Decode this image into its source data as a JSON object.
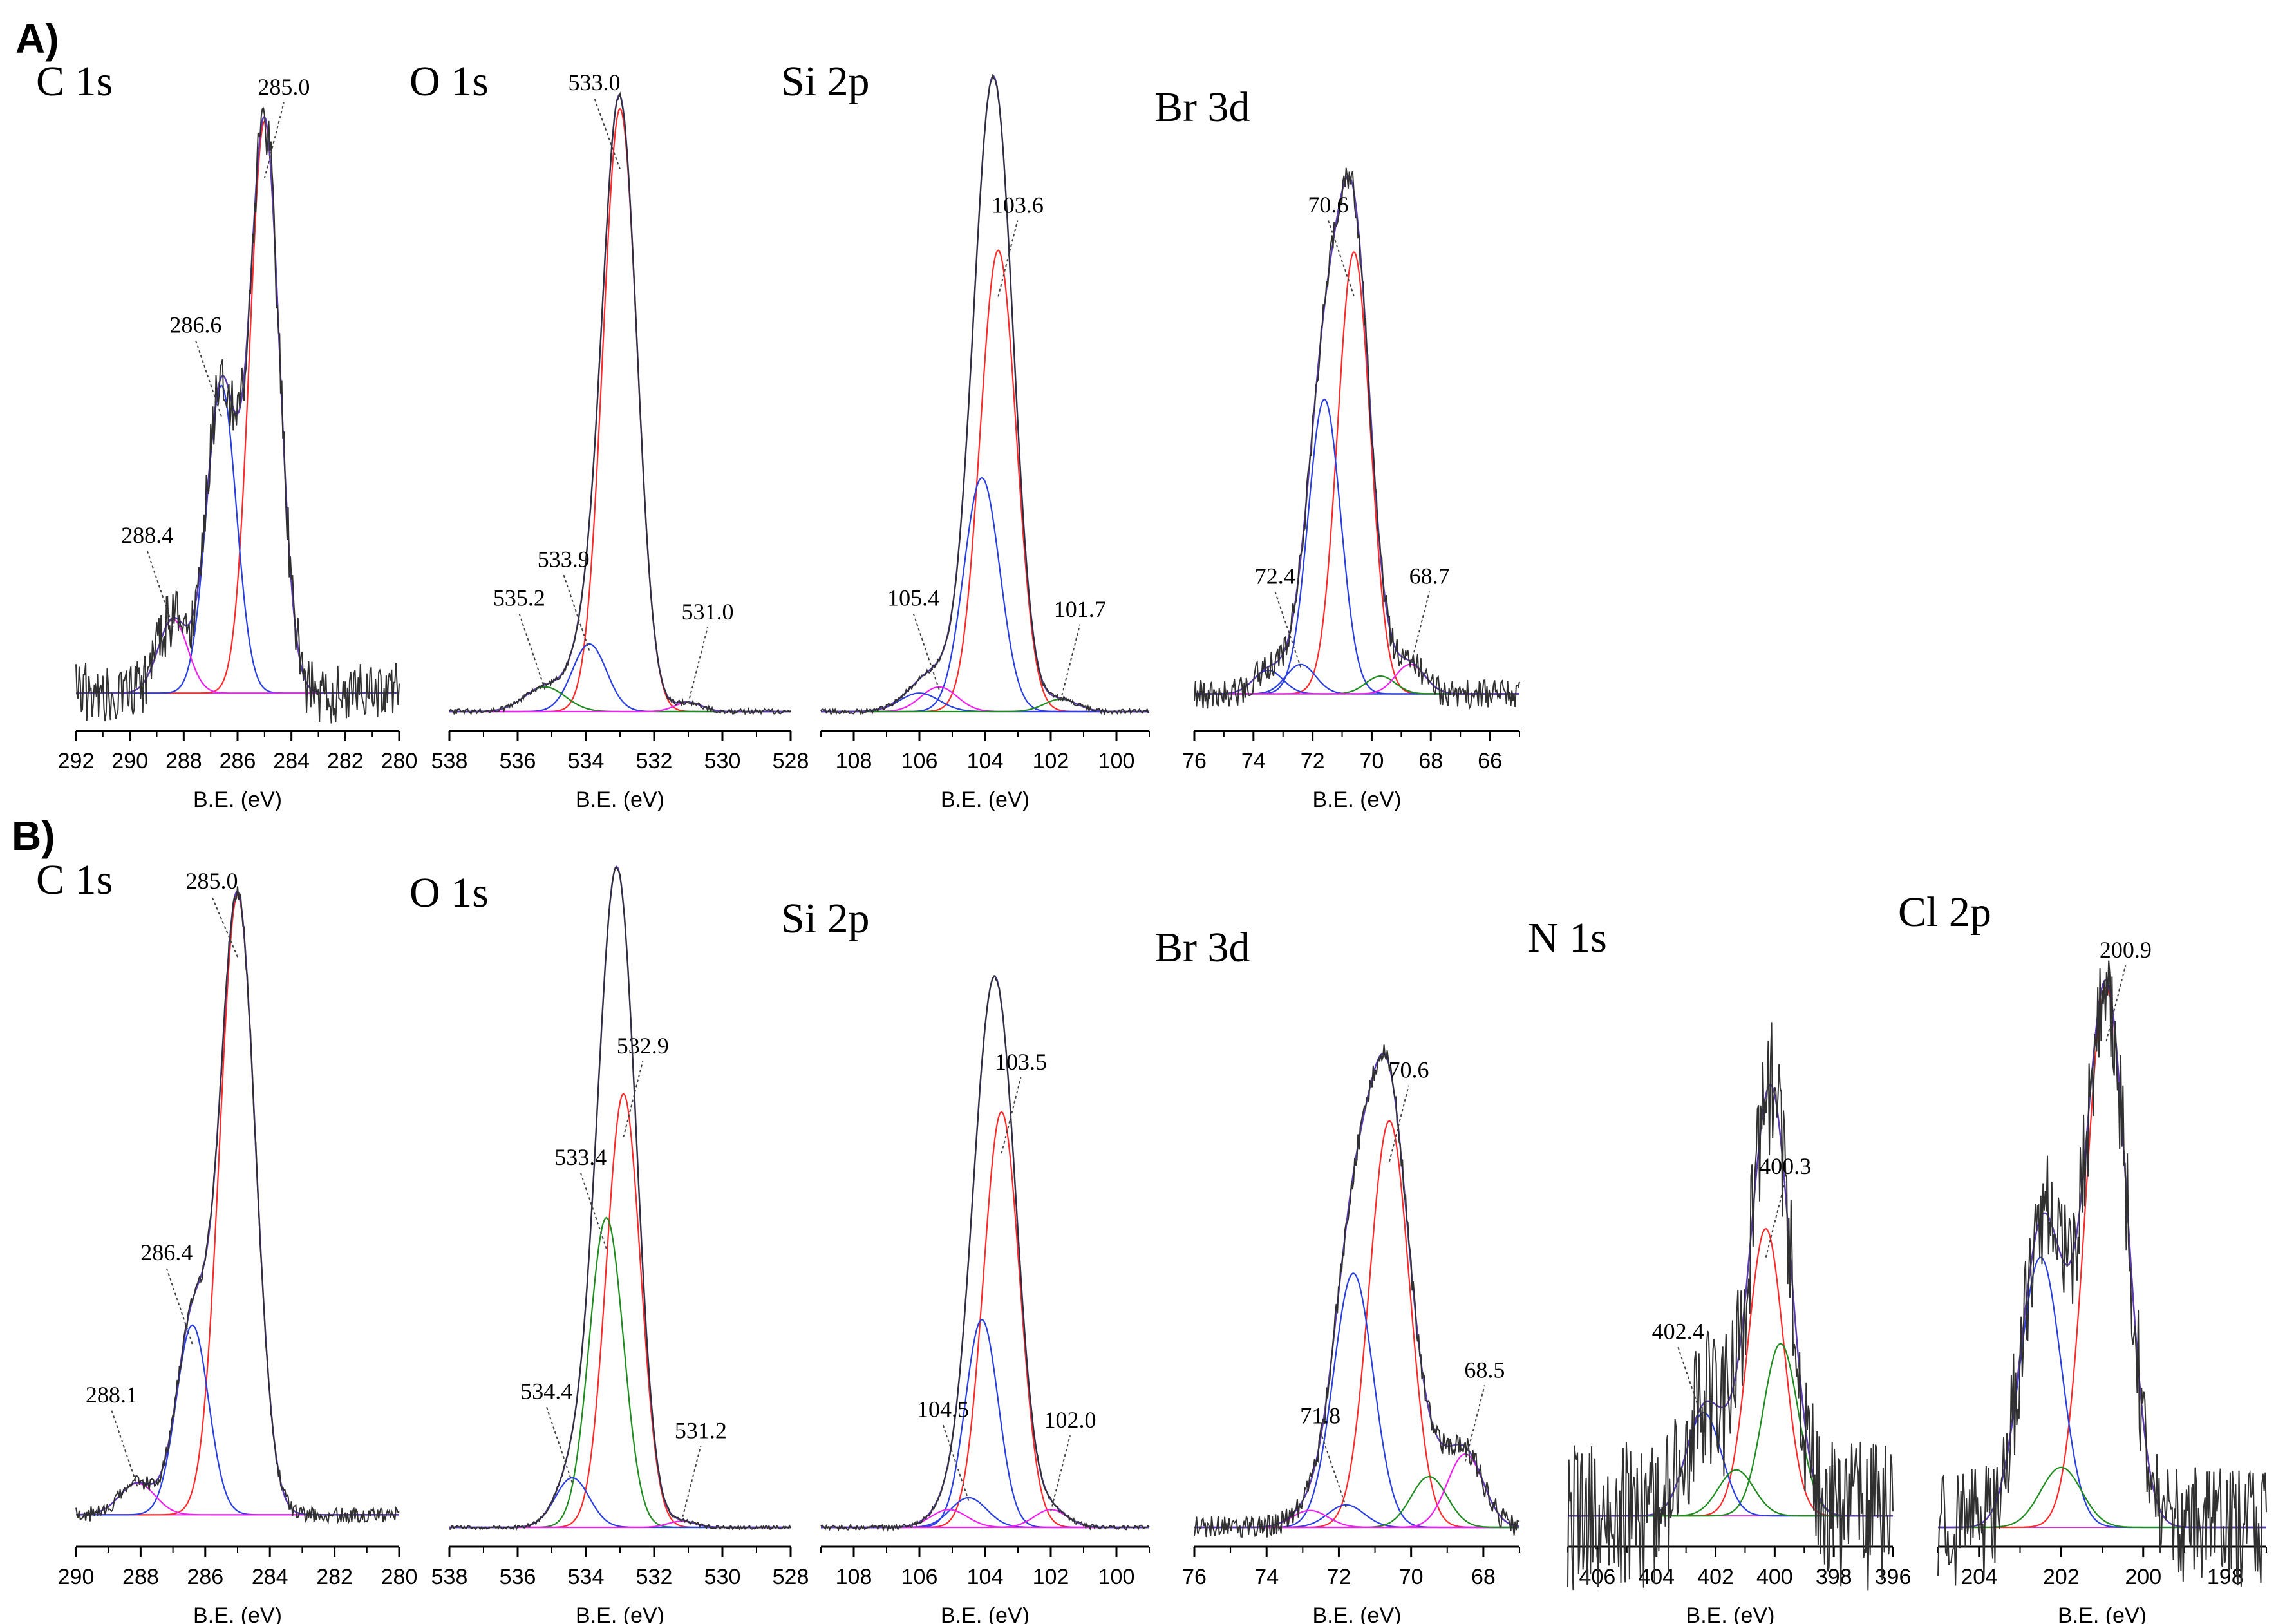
{
  "figure": {
    "section_a_label": "A)",
    "section_b_label": "B)",
    "colors": {
      "raw": "#303030",
      "envelope": "#5a3bb0",
      "red": "#ff2a2a",
      "blue": "#2a3fe0",
      "pink": "#ee22ee",
      "green": "#1f8c1f",
      "background_line": "#cc33cc"
    }
  },
  "chart_data": [
    {
      "type": "line",
      "panel": "A",
      "title": "C 1s",
      "xlabel": "B.E. (eV)",
      "xlim": [
        292,
        280
      ],
      "ticks": [
        292,
        290,
        288,
        286,
        284,
        282,
        280
      ],
      "baseline": 0.03,
      "noise": 0.05,
      "components": [
        {
          "center": 285.0,
          "height": 0.93,
          "width": 0.55,
          "color": "red",
          "label": "285.0"
        },
        {
          "center": 286.6,
          "height": 0.5,
          "width": 0.55,
          "color": "blue",
          "label": "286.6"
        },
        {
          "center": 288.4,
          "height": 0.12,
          "width": 0.55,
          "color": "pink",
          "label": "288.4"
        }
      ]
    },
    {
      "type": "line",
      "panel": "A",
      "title": "O 1s",
      "xlabel": "B.E. (eV)",
      "xlim": [
        538,
        528
      ],
      "ticks": [
        538,
        536,
        534,
        532,
        530,
        528
      ],
      "baseline": 0.0,
      "noise": 0.004,
      "components": [
        {
          "center": 533.0,
          "height": 0.98,
          "width": 0.5,
          "color": "red",
          "label": "533.0"
        },
        {
          "center": 533.9,
          "height": 0.11,
          "width": 0.5,
          "color": "blue",
          "label": "533.9"
        },
        {
          "center": 535.2,
          "height": 0.04,
          "width": 0.6,
          "color": "green",
          "label": "535.2"
        },
        {
          "center": 531.0,
          "height": 0.015,
          "width": 0.4,
          "color": "pink",
          "label": "531.0"
        }
      ]
    },
    {
      "type": "line",
      "panel": "A",
      "title": "Si 2p",
      "xlabel": "B.E. (eV)",
      "xlim": [
        109,
        99
      ],
      "ticks": [
        108,
        106,
        104,
        102,
        100
      ],
      "baseline": 0.0,
      "noise": 0.004,
      "components": [
        {
          "center": 103.6,
          "height": 0.75,
          "width": 0.55,
          "color": "red",
          "label": "103.6"
        },
        {
          "center": 104.1,
          "height": 0.38,
          "width": 0.55,
          "color": "blue",
          "label": ""
        },
        {
          "center": 105.4,
          "height": 0.04,
          "width": 0.55,
          "color": "pink",
          "label": "105.4"
        },
        {
          "center": 106.0,
          "height": 0.03,
          "width": 0.6,
          "color": "blue",
          "label": ""
        },
        {
          "center": 101.7,
          "height": 0.02,
          "width": 0.5,
          "color": "green",
          "label": "101.7"
        }
      ]
    },
    {
      "type": "line",
      "panel": "A",
      "title": "Br 3d",
      "xlabel": "B.E. (eV)",
      "xlim": [
        76,
        65
      ],
      "ticks": [
        76,
        74,
        72,
        70,
        68,
        66
      ],
      "baseline": 0.03,
      "noise": 0.025,
      "components": [
        {
          "center": 70.6,
          "height": 0.75,
          "width": 0.55,
          "color": "red",
          "label": "70.6"
        },
        {
          "center": 71.6,
          "height": 0.5,
          "width": 0.55,
          "color": "blue",
          "label": ""
        },
        {
          "center": 72.4,
          "height": 0.05,
          "width": 0.5,
          "color": "blue",
          "label": "72.4"
        },
        {
          "center": 73.5,
          "height": 0.04,
          "width": 0.5,
          "color": "blue",
          "label": ""
        },
        {
          "center": 69.7,
          "height": 0.03,
          "width": 0.5,
          "color": "green",
          "label": ""
        },
        {
          "center": 68.7,
          "height": 0.05,
          "width": 0.5,
          "color": "pink",
          "label": "68.7"
        }
      ]
    },
    {
      "type": "line",
      "panel": "B",
      "title": "C 1s",
      "xlabel": "B.E. (eV)",
      "xlim": [
        290,
        280
      ],
      "ticks": [
        290,
        288,
        286,
        284,
        282,
        280
      ],
      "baseline": 0.02,
      "noise": 0.012,
      "components": [
        {
          "center": 285.0,
          "height": 0.98,
          "width": 0.55,
          "color": "red",
          "label": "285.0"
        },
        {
          "center": 286.4,
          "height": 0.3,
          "width": 0.5,
          "color": "blue",
          "label": "286.4"
        },
        {
          "center": 288.1,
          "height": 0.05,
          "width": 0.55,
          "color": "pink",
          "label": "288.1"
        }
      ]
    },
    {
      "type": "line",
      "panel": "B",
      "title": "O 1s",
      "xlabel": "B.E. (eV)",
      "xlim": [
        538,
        528
      ],
      "ticks": [
        538,
        536,
        534,
        532,
        530,
        528
      ],
      "baseline": 0.0,
      "noise": 0.003,
      "components": [
        {
          "center": 532.9,
          "height": 0.7,
          "width": 0.5,
          "color": "red",
          "label": "532.9"
        },
        {
          "center": 533.4,
          "height": 0.5,
          "width": 0.5,
          "color": "green",
          "label": "533.4"
        },
        {
          "center": 534.4,
          "height": 0.08,
          "width": 0.5,
          "color": "blue",
          "label": "534.4"
        },
        {
          "center": 531.2,
          "height": 0.01,
          "width": 0.4,
          "color": "pink",
          "label": "531.2"
        }
      ]
    },
    {
      "type": "line",
      "panel": "B",
      "title": "Si 2p",
      "xlabel": "B.E. (eV)",
      "xlim": [
        109,
        99
      ],
      "ticks": [
        108,
        106,
        104,
        102,
        100
      ],
      "baseline": 0.0,
      "noise": 0.004,
      "components": [
        {
          "center": 103.5,
          "height": 0.7,
          "width": 0.55,
          "color": "red",
          "label": "103.5"
        },
        {
          "center": 104.1,
          "height": 0.35,
          "width": 0.5,
          "color": "blue",
          "label": ""
        },
        {
          "center": 104.5,
          "height": 0.05,
          "width": 0.55,
          "color": "blue",
          "label": "104.5"
        },
        {
          "center": 105.1,
          "height": 0.03,
          "width": 0.55,
          "color": "pink",
          "label": ""
        },
        {
          "center": 102.0,
          "height": 0.03,
          "width": 0.5,
          "color": "pink",
          "label": "102.0"
        }
      ]
    },
    {
      "type": "line",
      "panel": "B",
      "title": "Br 3d",
      "xlabel": "B.E. (eV)",
      "xlim": [
        76,
        67
      ],
      "ticks": [
        76,
        74,
        72,
        70,
        68
      ],
      "baseline": 0.0,
      "noise": 0.02,
      "components": [
        {
          "center": 70.6,
          "height": 0.72,
          "width": 0.55,
          "color": "red",
          "label": "70.6"
        },
        {
          "center": 71.6,
          "height": 0.45,
          "width": 0.55,
          "color": "blue",
          "label": ""
        },
        {
          "center": 71.8,
          "height": 0.04,
          "width": 0.5,
          "color": "blue",
          "label": "71.8"
        },
        {
          "center": 72.8,
          "height": 0.03,
          "width": 0.5,
          "color": "pink",
          "label": ""
        },
        {
          "center": 69.5,
          "height": 0.09,
          "width": 0.5,
          "color": "green",
          "label": ""
        },
        {
          "center": 68.5,
          "height": 0.13,
          "width": 0.5,
          "color": "pink",
          "label": "68.5"
        }
      ]
    },
    {
      "type": "line",
      "panel": "B",
      "title": "N 1s",
      "xlabel": "B.E. (eV)",
      "xlim": [
        407,
        396
      ],
      "ticks": [
        406,
        404,
        402,
        400,
        398,
        396
      ],
      "baseline": 0.02,
      "noise": 0.13,
      "components": [
        {
          "center": 400.3,
          "height": 0.5,
          "width": 0.6,
          "color": "red",
          "label": "400.3"
        },
        {
          "center": 399.8,
          "height": 0.3,
          "width": 0.6,
          "color": "green",
          "label": ""
        },
        {
          "center": 402.4,
          "height": 0.18,
          "width": 0.6,
          "color": "blue",
          "label": "402.4"
        },
        {
          "center": 401.3,
          "height": 0.08,
          "width": 0.6,
          "color": "green",
          "label": ""
        }
      ]
    },
    {
      "type": "line",
      "panel": "B",
      "title": "Cl 2p",
      "xlabel": "B.E. (eV)",
      "xlim": [
        205,
        197
      ],
      "ticks": [
        204,
        202,
        200,
        198
      ],
      "baseline": 0.0,
      "noise": 0.1,
      "components": [
        {
          "center": 200.9,
          "height": 0.9,
          "width": 0.5,
          "color": "red",
          "label": "200.9"
        },
        {
          "center": 202.5,
          "height": 0.45,
          "width": 0.5,
          "color": "blue",
          "label": ""
        },
        {
          "center": 202.0,
          "height": 0.1,
          "width": 0.5,
          "color": "green",
          "label": ""
        }
      ]
    }
  ]
}
